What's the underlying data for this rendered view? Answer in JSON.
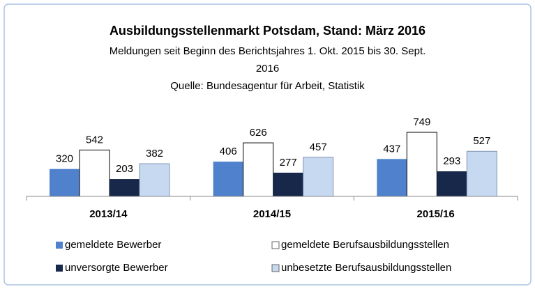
{
  "chart_data": {
    "type": "bar",
    "title": "Ausbildungsstellenmarkt Potsdam, Stand: März 2016",
    "subtitle": "Meldungen seit Beginn des Berichtsjahres 1. Okt. 2015 bis 30. Sept. 2016",
    "source": "Quelle: Bundesagentur für Arbeit, Statistik",
    "categories": [
      "2013/14",
      "2014/15",
      "2015/16"
    ],
    "series": [
      {
        "name": "gemeldete Bewerber",
        "color": "#4f81cc",
        "values": [
          320,
          406,
          437
        ]
      },
      {
        "name": "gemeldete Berufsausbildungsstellen",
        "color": "#ffffff",
        "values": [
          542,
          626,
          749
        ]
      },
      {
        "name": "unversorgte Bewerber",
        "color": "#17284a",
        "values": [
          203,
          277,
          293
        ]
      },
      {
        "name": "unbesetzte Berufsausbildungsstellen",
        "color": "#c6d9f1",
        "values": [
          382,
          457,
          527
        ]
      }
    ]
  }
}
